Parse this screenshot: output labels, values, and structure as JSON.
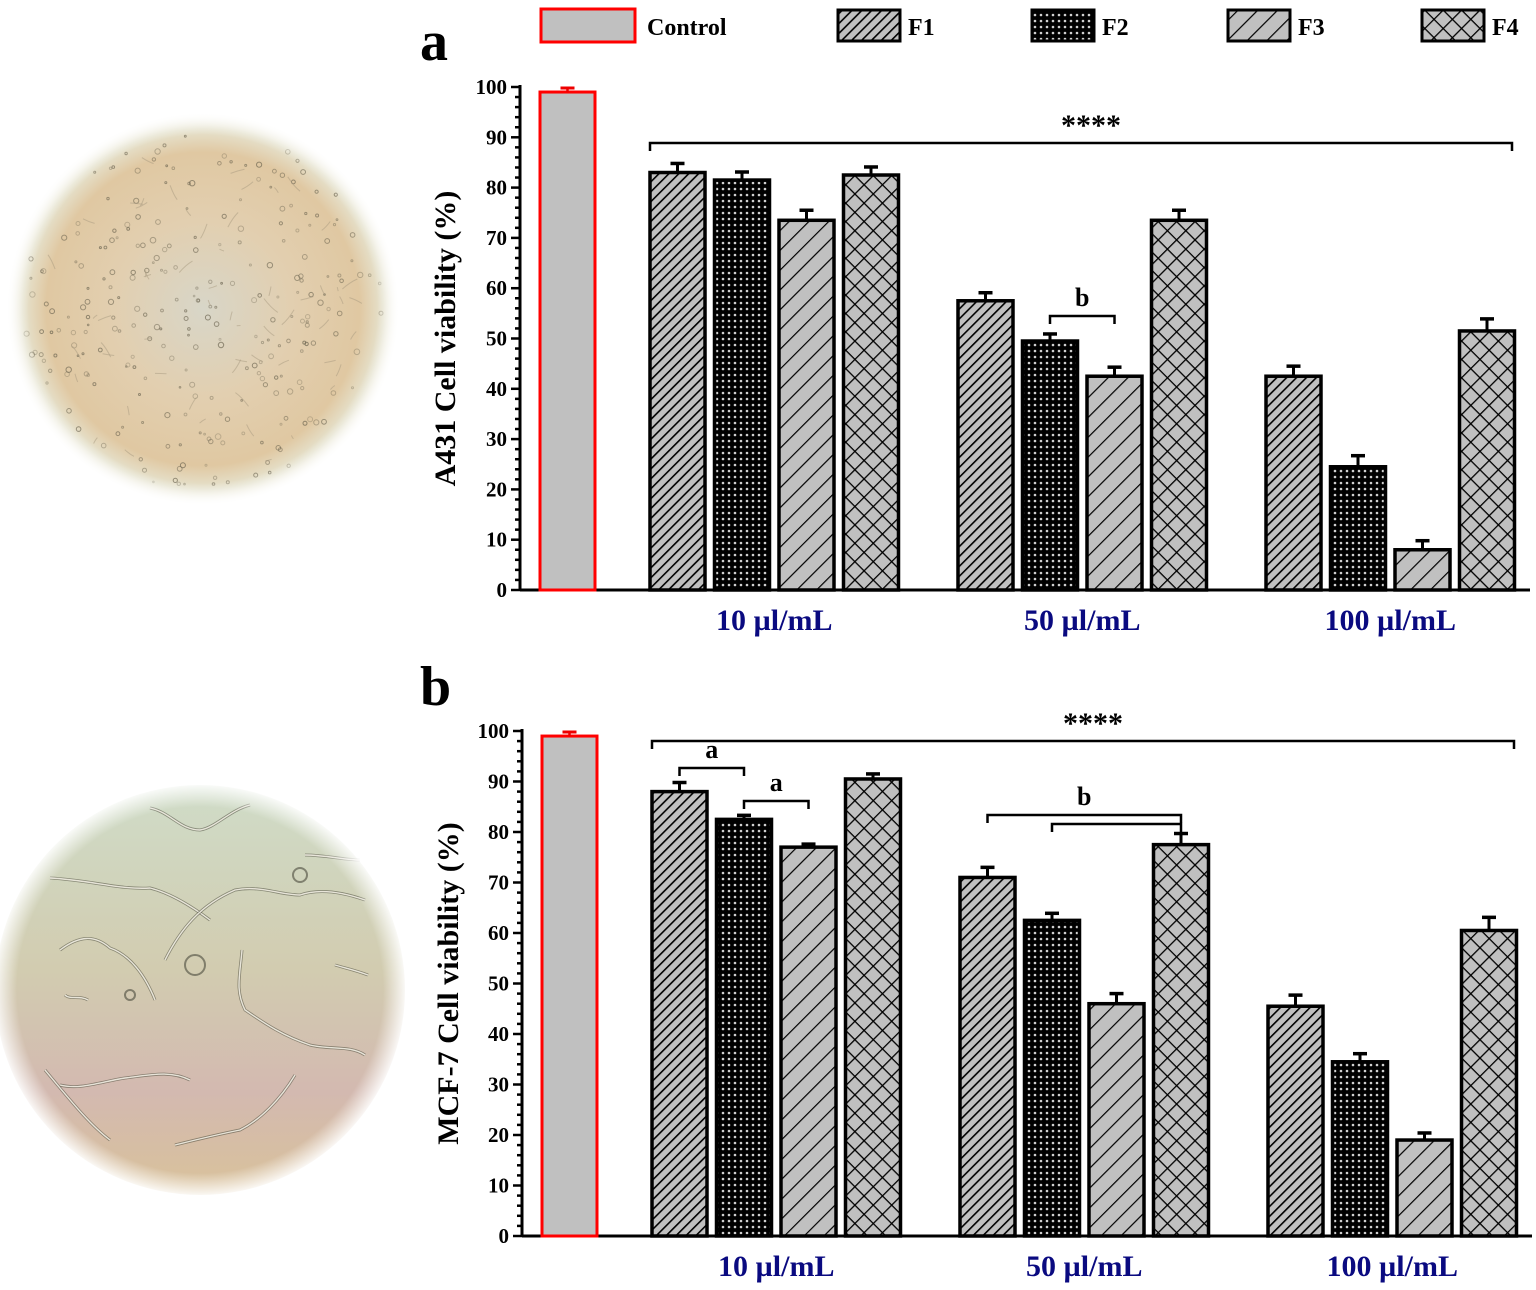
{
  "legend": {
    "items": [
      {
        "key": "control",
        "label": "Control"
      },
      {
        "key": "F1",
        "label": "F1"
      },
      {
        "key": "F2",
        "label": "F2"
      },
      {
        "key": "F3",
        "label": "F3"
      },
      {
        "key": "F4",
        "label": "F4"
      }
    ]
  },
  "colors": {
    "control_fill": "#c0c0c0",
    "control_border": "#ff0000",
    "bar_fill": "#c0c0c0",
    "bar_stroke": "#000000",
    "category_label": "#0a0a80"
  },
  "images": [
    {
      "panel": "a",
      "description": "micrograph-a431-cells",
      "dominant_colors": [
        "#e8d3b0",
        "#d9c9b8",
        "#e3e4cf"
      ]
    },
    {
      "panel": "b",
      "description": "micrograph-mcf7-cells",
      "dominant_colors": [
        "#cfd6c4",
        "#d5c0b6",
        "#d8c29e"
      ]
    }
  ],
  "chart_data": [
    {
      "panel": "a",
      "type": "bar",
      "title": "",
      "panel_letter": "a",
      "xlabel": "",
      "ylabel": "A431 Cell viability (%)",
      "ylim": [
        0,
        100
      ],
      "yticks": [
        0,
        10,
        20,
        30,
        40,
        50,
        60,
        70,
        80,
        90,
        100
      ],
      "grid": false,
      "legend_position": "top",
      "control": {
        "name": "Control",
        "value": 99,
        "error": 0.8
      },
      "categories": [
        "10 µl/mL",
        "50 µl/mL",
        "100 µl/mL"
      ],
      "series": [
        {
          "name": "F1",
          "pattern": "fine-diagonal",
          "values": [
            83,
            57.5,
            42.5
          ],
          "errors": [
            1.8,
            1.6,
            2.0
          ]
        },
        {
          "name": "F2",
          "pattern": "dots",
          "values": [
            81.5,
            49.5,
            24.5
          ],
          "errors": [
            1.6,
            1.4,
            2.2
          ]
        },
        {
          "name": "F3",
          "pattern": "wide-diagonal",
          "values": [
            73.5,
            42.5,
            8
          ],
          "errors": [
            2.0,
            1.8,
            1.8
          ]
        },
        {
          "name": "F4",
          "pattern": "crosshatch",
          "values": [
            82.5,
            73.5,
            51.5
          ],
          "errors": [
            1.6,
            2.0,
            2.4
          ]
        }
      ],
      "annotations": [
        {
          "text": "****",
          "type": "bracket",
          "from": "F1@10 µl/mL",
          "to": "F4@100 µl/mL"
        },
        {
          "text": "b",
          "type": "bracket",
          "from": "F2@50 µl/mL",
          "to": "F3@50 µl/mL"
        }
      ]
    },
    {
      "panel": "b",
      "type": "bar",
      "title": "",
      "panel_letter": "b",
      "xlabel": "",
      "ylabel": "MCF-7 Cell viability (%)",
      "ylim": [
        0,
        100
      ],
      "yticks": [
        0,
        10,
        20,
        30,
        40,
        50,
        60,
        70,
        80,
        90,
        100
      ],
      "grid": false,
      "legend_position": "top",
      "control": {
        "name": "Control",
        "value": 99,
        "error": 0.8
      },
      "categories": [
        "10 µl/mL",
        "50 µl/mL",
        "100 µl/mL"
      ],
      "series": [
        {
          "name": "F1",
          "pattern": "fine-diagonal",
          "values": [
            88,
            71,
            45.5
          ],
          "errors": [
            1.8,
            2.0,
            2.2
          ]
        },
        {
          "name": "F2",
          "pattern": "dots",
          "values": [
            82.5,
            62.5,
            34.5
          ],
          "errors": [
            0.8,
            1.4,
            1.6
          ]
        },
        {
          "name": "F3",
          "pattern": "wide-diagonal",
          "values": [
            77,
            46,
            19
          ],
          "errors": [
            0.6,
            2.0,
            1.4
          ]
        },
        {
          "name": "F4",
          "pattern": "crosshatch",
          "values": [
            90.5,
            77.5,
            60.5
          ],
          "errors": [
            1.0,
            2.2,
            2.6
          ]
        }
      ],
      "annotations": [
        {
          "text": "****",
          "type": "bracket",
          "from": "F1@10 µl/mL",
          "to": "F4@100 µl/mL"
        },
        {
          "text": "a",
          "type": "bracket",
          "from": "F1@10 µl/mL",
          "to": "F2@10 µl/mL"
        },
        {
          "text": "a",
          "type": "bracket",
          "from": "F2@10 µl/mL",
          "to": "F3@10 µl/mL"
        },
        {
          "text": "b",
          "type": "bracket",
          "from": "F1@50 µl/mL",
          "to": "F4@50 µl/mL"
        },
        {
          "text": "",
          "type": "bracket",
          "from": "F2@50 µl/mL",
          "to": "F4@50 µl/mL"
        }
      ]
    }
  ]
}
